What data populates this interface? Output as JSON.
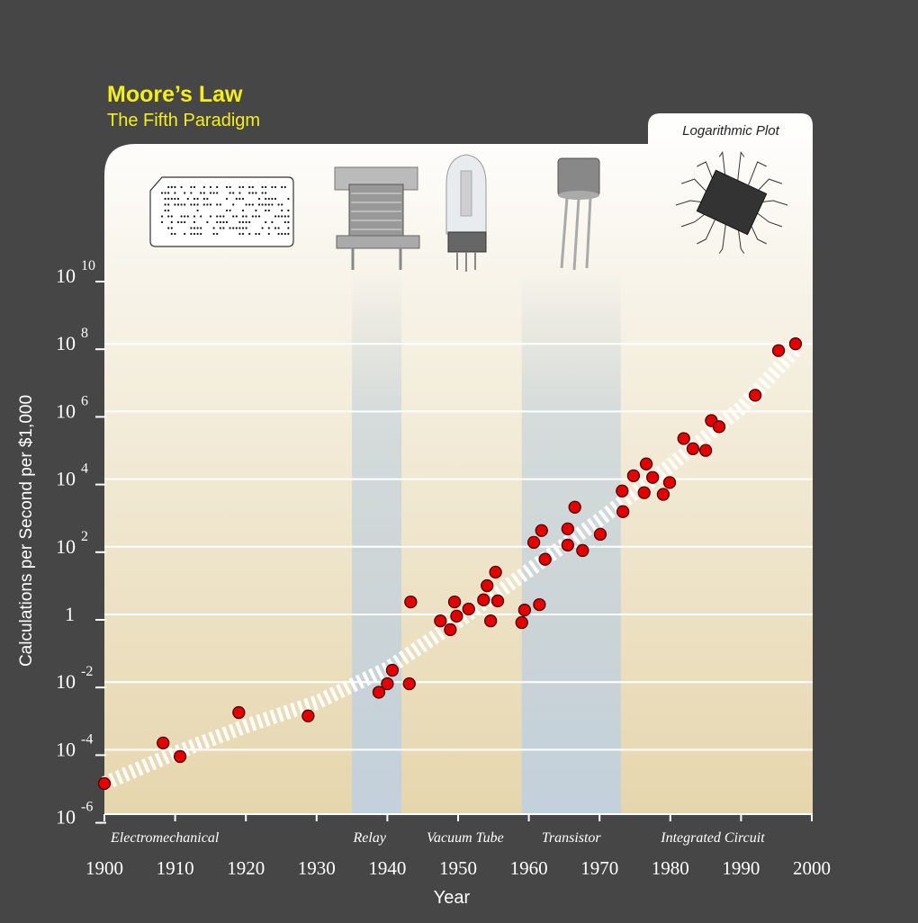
{
  "header": {
    "title": "Moore’s Law",
    "subtitle": "The Fifth Paradigm",
    "tab_label": "Logarithmic Plot"
  },
  "chart_data": {
    "type": "scatter",
    "title": "Moore’s Law",
    "subtitle": "The Fifth Paradigm",
    "xlabel": "Year",
    "ylabel": "Calculations per Second per $1,000",
    "x_scale": "linear",
    "y_scale": "log",
    "xlim": [
      1900,
      2000
    ],
    "ylim_exponent": [
      -6,
      10
    ],
    "x_ticks": [
      "1900",
      "1910",
      "1920",
      "1930",
      "1940",
      "1950",
      "1960",
      "1970",
      "1980",
      "1990",
      "2000"
    ],
    "y_ticks": [
      {
        "exp": 10,
        "base": "10",
        "sup": "10"
      },
      {
        "exp": 8,
        "base": "10",
        "sup": "8"
      },
      {
        "exp": 6,
        "base": "10",
        "sup": "6"
      },
      {
        "exp": 4,
        "base": "10",
        "sup": "4"
      },
      {
        "exp": 2,
        "base": "10",
        "sup": "2"
      },
      {
        "exp": 0,
        "base": "1",
        "sup": ""
      },
      {
        "exp": -2,
        "base": "10",
        "sup": "-2"
      },
      {
        "exp": -4,
        "base": "10",
        "sup": "-4"
      },
      {
        "exp": -6,
        "base": "10",
        "sup": "-6"
      }
    ],
    "grid": true,
    "paradigms": [
      {
        "label": "Electromechanical",
        "start": 1900,
        "end": 1935,
        "highlight": false
      },
      {
        "label": "Relay",
        "start": 1935,
        "end": 1942,
        "highlight": true
      },
      {
        "label": "Vacuum Tube",
        "start": 1942,
        "end": 1959,
        "highlight": false
      },
      {
        "label": "Transistor",
        "start": 1959,
        "end": 1973,
        "highlight": true
      },
      {
        "label": "Integrated Circuit",
        "start": 1973,
        "end": 2000,
        "highlight": false
      }
    ],
    "trend_log10": [
      [
        1900,
        -5
      ],
      [
        1910,
        -4.1
      ],
      [
        1920,
        -3.3
      ],
      [
        1930,
        -2.6
      ],
      [
        1940,
        -1.6
      ],
      [
        1950,
        -0.2
      ],
      [
        1960,
        1.3
      ],
      [
        1970,
        2.8
      ],
      [
        1980,
        4.4
      ],
      [
        1990,
        6.1
      ],
      [
        1998,
        7.9
      ]
    ],
    "points_log10": [
      [
        1900,
        -5.0
      ],
      [
        1908.3,
        -3.8
      ],
      [
        1910.7,
        -4.2
      ],
      [
        1919,
        -2.9
      ],
      [
        1928.8,
        -3.0
      ],
      [
        1938.8,
        -2.3
      ],
      [
        1940,
        -2.05
      ],
      [
        1940.7,
        -1.65
      ],
      [
        1943.1,
        -2.05
      ],
      [
        1943.3,
        0.37
      ],
      [
        1947.5,
        -0.19
      ],
      [
        1948.9,
        -0.45
      ],
      [
        1949.5,
        0.37
      ],
      [
        1949.8,
        -0.05
      ],
      [
        1951.5,
        0.16
      ],
      [
        1953.6,
        0.43
      ],
      [
        1954.1,
        0.85
      ],
      [
        1954.6,
        -0.19
      ],
      [
        1955.3,
        1.25
      ],
      [
        1955.6,
        0.4
      ],
      [
        1959,
        -0.24
      ],
      [
        1959.4,
        0.13
      ],
      [
        1960.7,
        2.13
      ],
      [
        1961.5,
        0.29
      ],
      [
        1961.8,
        2.48
      ],
      [
        1962.3,
        1.63
      ],
      [
        1965.5,
        2.53
      ],
      [
        1965.5,
        2.05
      ],
      [
        1966.5,
        3.17
      ],
      [
        1967.6,
        1.89
      ],
      [
        1970.1,
        2.37
      ],
      [
        1973.2,
        3.65
      ],
      [
        1973.3,
        3.04
      ],
      [
        1974.8,
        4.1
      ],
      [
        1976.3,
        3.6
      ],
      [
        1976.6,
        4.45
      ],
      [
        1977.5,
        4.05
      ],
      [
        1979,
        3.55
      ],
      [
        1979.9,
        3.9
      ],
      [
        1981.9,
        5.2
      ],
      [
        1983.2,
        4.9
      ],
      [
        1985,
        4.85
      ],
      [
        1985.8,
        5.73
      ],
      [
        1986.9,
        5.55
      ],
      [
        1992,
        6.48
      ],
      [
        1995.3,
        7.8
      ],
      [
        1997.7,
        8.0
      ]
    ],
    "colors": {
      "points": "#e30000",
      "band": "#c3d1dc",
      "panel_bottom": "#e6d6ad",
      "title": "#f4ef1c",
      "background": "#464646"
    }
  }
}
